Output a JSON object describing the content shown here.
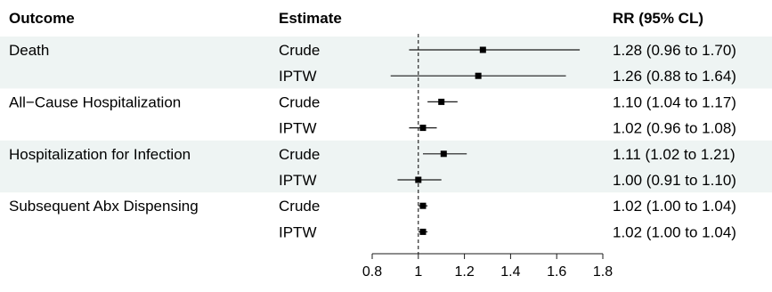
{
  "headers": {
    "outcome": "Outcome",
    "estimate": "Estimate",
    "rr": "RR (95% CL)"
  },
  "colors": {
    "band": "#eef4f3",
    "marker": "#000000",
    "line": "#1a1a1a",
    "reference": "#000000"
  },
  "chart_data": {
    "type": "forest",
    "x_scale": "linear",
    "xlim": [
      0.8,
      1.8
    ],
    "xticks": [
      "0.8",
      "1",
      "1.2",
      "1.4",
      "1.6",
      "1.8"
    ],
    "reference_line": 1,
    "reference_line_style": "dashed",
    "rows": [
      {
        "outcome": "Death",
        "estimate": "Crude",
        "rr": 1.28,
        "lo": 0.96,
        "hi": 1.7,
        "label": "1.28 (0.96 to 1.70)"
      },
      {
        "outcome": "",
        "estimate": "IPTW",
        "rr": 1.26,
        "lo": 0.88,
        "hi": 1.64,
        "label": "1.26 (0.88 to 1.64)"
      },
      {
        "outcome": "All−Cause Hospitalization",
        "estimate": "Crude",
        "rr": 1.1,
        "lo": 1.04,
        "hi": 1.17,
        "label": "1.10 (1.04 to 1.17)"
      },
      {
        "outcome": "",
        "estimate": "IPTW",
        "rr": 1.02,
        "lo": 0.96,
        "hi": 1.08,
        "label": "1.02 (0.96 to 1.08)"
      },
      {
        "outcome": "Hospitalization for Infection",
        "estimate": "Crude",
        "rr": 1.11,
        "lo": 1.02,
        "hi": 1.21,
        "label": "1.11 (1.02 to 1.21)"
      },
      {
        "outcome": "",
        "estimate": "IPTW",
        "rr": 1.0,
        "lo": 0.91,
        "hi": 1.1,
        "label": "1.00 (0.91 to 1.10)"
      },
      {
        "outcome": "Subsequent Abx Dispensing",
        "estimate": "Crude",
        "rr": 1.02,
        "lo": 1.0,
        "hi": 1.04,
        "label": "1.02 (1.00 to 1.04)"
      },
      {
        "outcome": "",
        "estimate": "IPTW",
        "rr": 1.02,
        "lo": 1.0,
        "hi": 1.04,
        "label": "1.02 (1.00 to 1.04)"
      }
    ]
  }
}
